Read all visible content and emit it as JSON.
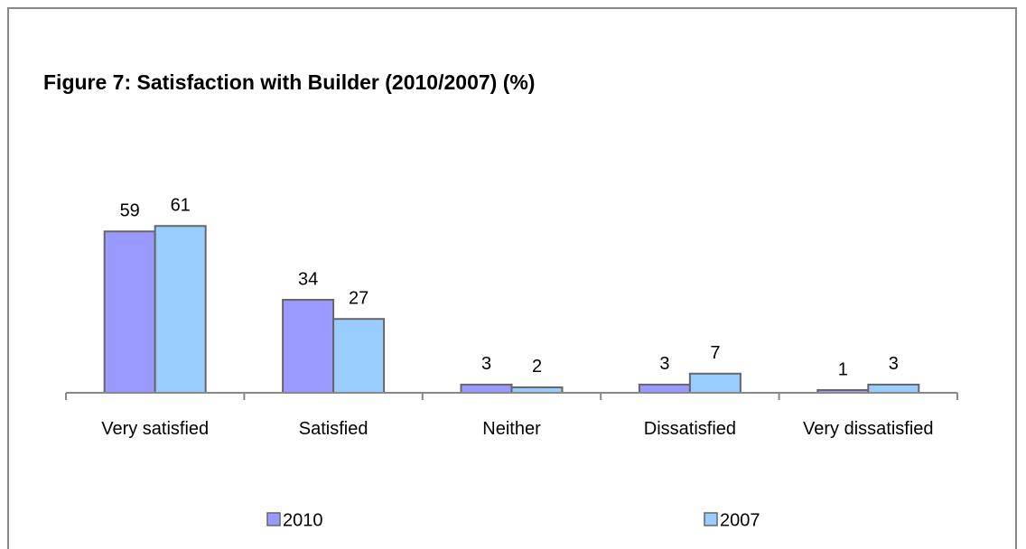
{
  "chart_data": {
    "type": "bar",
    "title": "Figure 7: Satisfaction with Builder (2010/2007) (%)",
    "categories": [
      "Very satisfied",
      "Satisfied",
      "Neither",
      "Dissatisfied",
      "Very dissatisfied"
    ],
    "series": [
      {
        "name": "2010",
        "color": "#9999ff",
        "values": [
          59,
          34,
          3,
          3,
          1
        ]
      },
      {
        "name": "2007",
        "color": "#99ccff",
        "values": [
          61,
          27,
          2,
          7,
          3
        ]
      }
    ],
    "ylim": [
      0,
      70
    ],
    "legend": "bottom"
  }
}
